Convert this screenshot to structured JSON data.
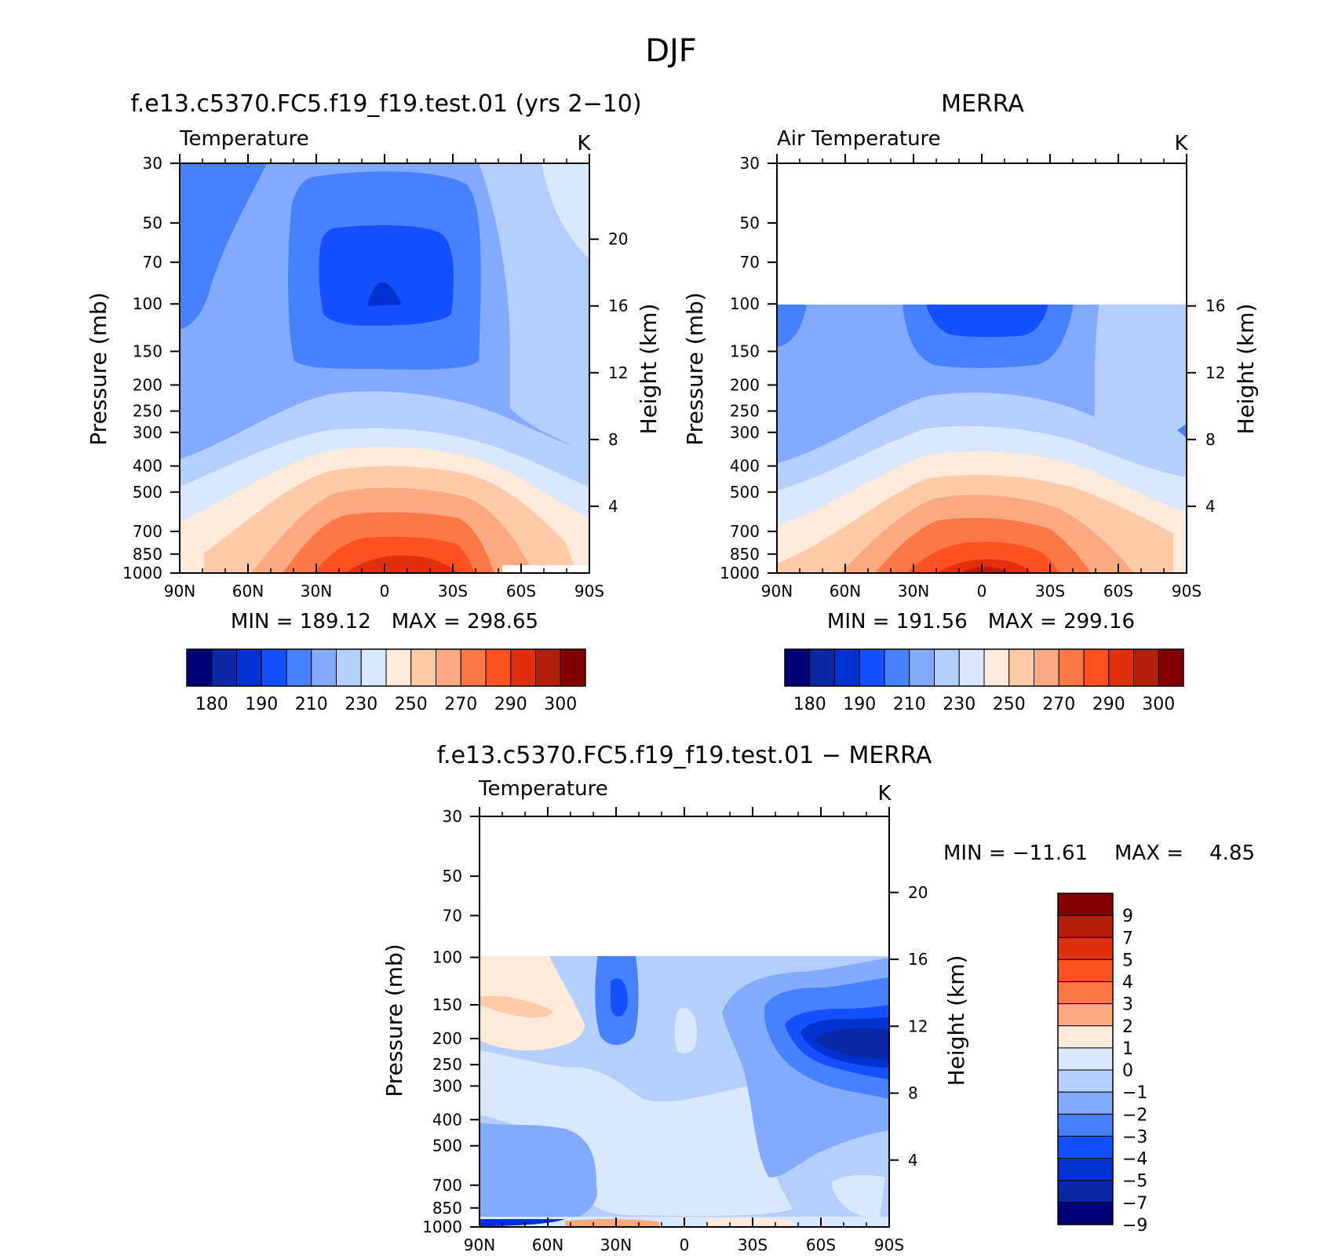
{
  "figure": {
    "title": "DJF"
  },
  "colors": {
    "abs": [
      "#000078",
      "#0a28a5",
      "#0032d2",
      "#1450ff",
      "#4682ff",
      "#82aaff",
      "#b4ceff",
      "#d7e8ff",
      "#ffe9d8",
      "#fecaa8",
      "#fca982",
      "#fc7846",
      "#ff5020",
      "#e1300e",
      "#b41e0a",
      "#820000"
    ],
    "diff": [
      "#000078",
      "#0a28a5",
      "#0032d2",
      "#1450ff",
      "#4682ff",
      "#82aaff",
      "#b4ceff",
      "#d7e8ff",
      "#ffe9d8",
      "#fca982",
      "#fc7846",
      "#ff5020",
      "#e1300e",
      "#b41e0a",
      "#820000"
    ]
  },
  "chart_data": [
    {
      "type": "heatmap",
      "title": "f.e13.c5370.FC5.f19_f19.test.01 (yrs 2−10)",
      "variable": "Temperature",
      "units": "K",
      "ylabel": "Pressure (mb)",
      "ylabel2": "Height (km)",
      "x_ticks": [
        "90N",
        "60N",
        "30N",
        "0",
        "30S",
        "60S",
        "90S"
      ],
      "y_ticks": [
        "30",
        "50",
        "70",
        "100",
        "150",
        "200",
        "250",
        "300",
        "400",
        "500",
        "700",
        "850",
        "1000"
      ],
      "height_ticks": [
        "20",
        "16",
        "12",
        "8",
        "4"
      ],
      "ylim": [
        1000,
        30
      ],
      "min_label": "MIN = 189.12",
      "max_label": "MAX = 298.65",
      "colorbar_labels": [
        "180",
        "190",
        "210",
        "230",
        "250",
        "270",
        "290",
        "300"
      ],
      "levels": [
        180,
        185,
        190,
        200,
        210,
        220,
        230,
        240,
        250,
        260,
        270,
        280,
        290,
        295,
        300
      ]
    },
    {
      "type": "heatmap",
      "title": "MERRA",
      "variable": "Air Temperature",
      "units": "K",
      "ylabel": "Pressure (mb)",
      "ylabel2": "Height (km)",
      "x_ticks": [
        "90N",
        "60N",
        "30N",
        "0",
        "30S",
        "60S",
        "90S"
      ],
      "y_ticks": [
        "30",
        "50",
        "70",
        "100",
        "150",
        "200",
        "250",
        "300",
        "400",
        "500",
        "700",
        "850",
        "1000"
      ],
      "height_ticks": [
        "16",
        "12",
        "8",
        "4"
      ],
      "ylim": [
        1000,
        30
      ],
      "data_top_mb": 100,
      "min_label": "MIN = 191.56",
      "max_label": "MAX = 299.16",
      "colorbar_labels": [
        "180",
        "190",
        "210",
        "230",
        "250",
        "270",
        "290",
        "300"
      ],
      "levels": [
        180,
        185,
        190,
        200,
        210,
        220,
        230,
        240,
        250,
        260,
        270,
        280,
        290,
        295,
        300
      ]
    },
    {
      "type": "heatmap",
      "title": "f.e13.c5370.FC5.f19_f19.test.01 − MERRA",
      "variable": "Temperature",
      "units": "K",
      "ylabel": "Pressure (mb)",
      "ylabel2": "Height (km)",
      "x_ticks": [
        "90N",
        "60N",
        "30N",
        "0",
        "30S",
        "60S",
        "90S"
      ],
      "y_ticks": [
        "30",
        "50",
        "70",
        "100",
        "150",
        "200",
        "250",
        "300",
        "400",
        "500",
        "700",
        "850",
        "1000"
      ],
      "height_ticks": [
        "20",
        "16",
        "12",
        "8",
        "4"
      ],
      "ylim": [
        1000,
        30
      ],
      "data_top_mb": 100,
      "min_label": "MIN = −11.61",
      "max_label": "MAX =    4.85",
      "colorbar_labels": [
        "9",
        "7",
        "5",
        "4",
        "3",
        "2",
        "1",
        "0",
        "−1",
        "−2",
        "−3",
        "−4",
        "−5",
        "−7",
        "−9"
      ],
      "levels": [
        -9,
        -7,
        -5,
        -4,
        -3,
        -2,
        -1,
        0,
        1,
        2,
        3,
        4,
        5,
        7,
        9
      ]
    }
  ]
}
